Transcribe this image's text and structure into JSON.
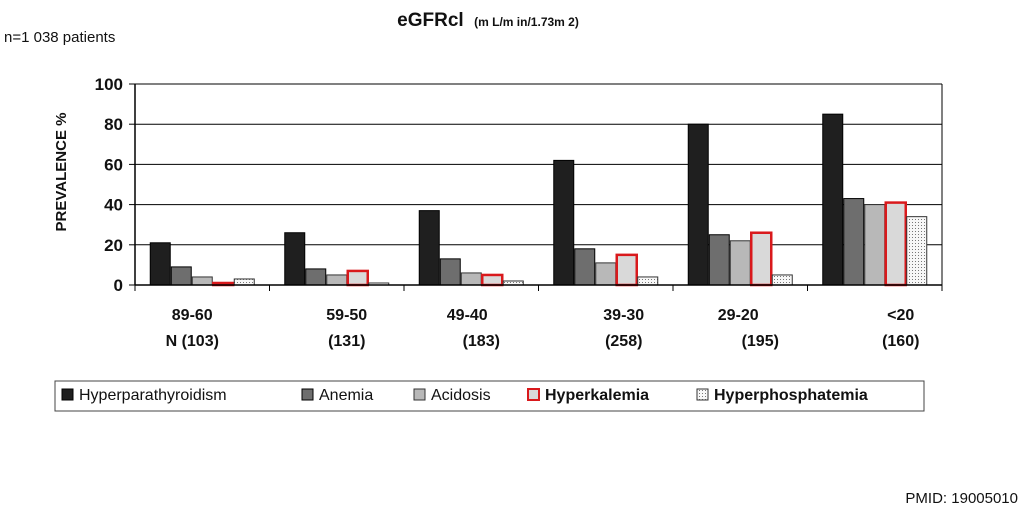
{
  "note": "n=1 038 patients",
  "pmid": "PMID: 19005010",
  "chart_data": {
    "type": "bar",
    "title": "eGFRcl",
    "title_unit": "(m L/m in/1.73m 2)",
    "ylabel": "PREVALENCE %",
    "ylim": [
      0,
      100
    ],
    "yticks": [
      0,
      20,
      40,
      60,
      80,
      100
    ],
    "grid": true,
    "legend_position": "bottom",
    "categories": [
      "89-60",
      "59-50",
      "49-40",
      "39-30",
      "29-20",
      "<20"
    ],
    "category_n": [
      "N (103)",
      "(131)",
      "(183)",
      "(258)",
      "(195)",
      "(160)"
    ],
    "series": [
      {
        "name": "Hyperparathyroidism",
        "values": [
          21,
          26,
          37,
          62,
          80,
          85
        ],
        "color": "#1f1f1f",
        "stroke": "#000000"
      },
      {
        "name": "Anemia",
        "values": [
          9,
          8,
          13,
          18,
          25,
          43
        ],
        "color": "#6e6e6e",
        "stroke": "#000000"
      },
      {
        "name": "Acidosis",
        "values": [
          4,
          5,
          6,
          11,
          22,
          40
        ],
        "color": "#b8b8b8",
        "stroke": "#333333"
      },
      {
        "name": "Hyperkalemia",
        "values": [
          1,
          7,
          5,
          15,
          26,
          41
        ],
        "color": "#d9d9d9",
        "stroke": "#d9191c"
      },
      {
        "name": "Hyperphosphatemia",
        "values": [
          3,
          1,
          2,
          4,
          5,
          34
        ],
        "color": "#f4f4f4",
        "stroke": "#333333"
      }
    ]
  }
}
